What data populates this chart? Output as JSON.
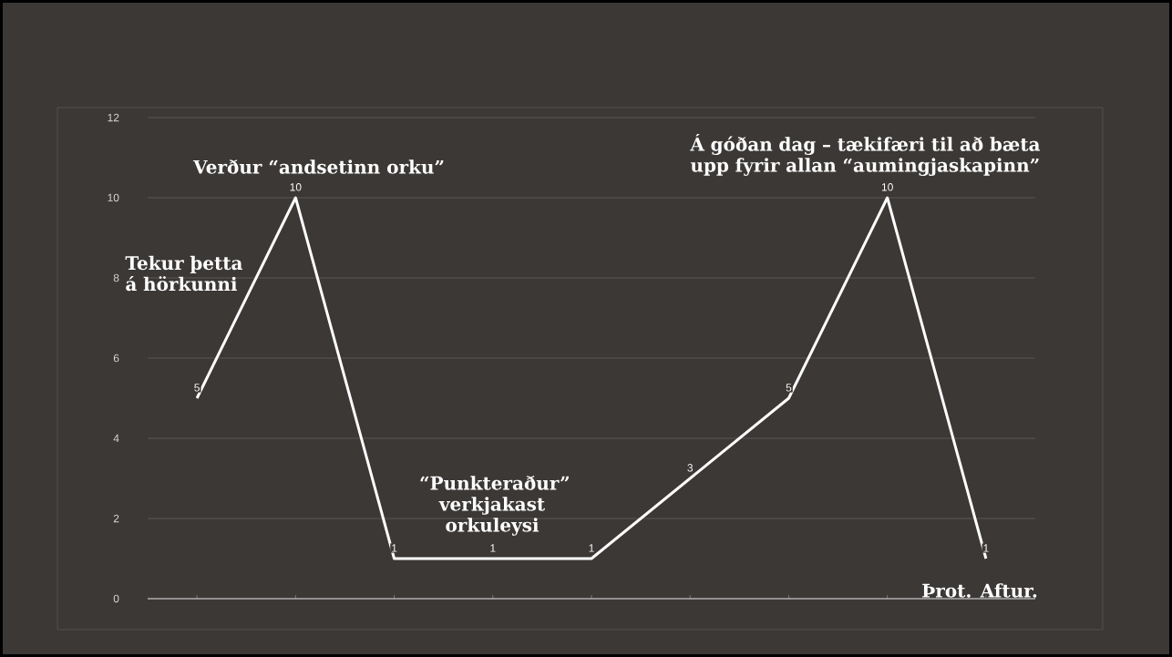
{
  "chart_data": {
    "type": "line",
    "categories": [
      null,
      null,
      null,
      null,
      null,
      null,
      null,
      null,
      null
    ],
    "values": [
      5,
      10,
      1,
      1,
      1,
      3,
      5,
      10,
      1
    ],
    "color": "#ffffff",
    "ylim": [
      0,
      12
    ],
    "yticks": [
      0,
      2,
      4,
      6,
      8,
      10,
      12
    ],
    "grid": "y",
    "marker": "none",
    "data_labels": true,
    "annotations": [
      "Tekur þetta á hörkunni",
      "Verður “andsetinn orku”",
      "“Punkteraður” verkjakast orkuleysi",
      "Á góðan dag – tækifæri til að bæta upp fyrir allan “aumingjaskapinn”",
      "Þrot. Aftur."
    ]
  }
}
